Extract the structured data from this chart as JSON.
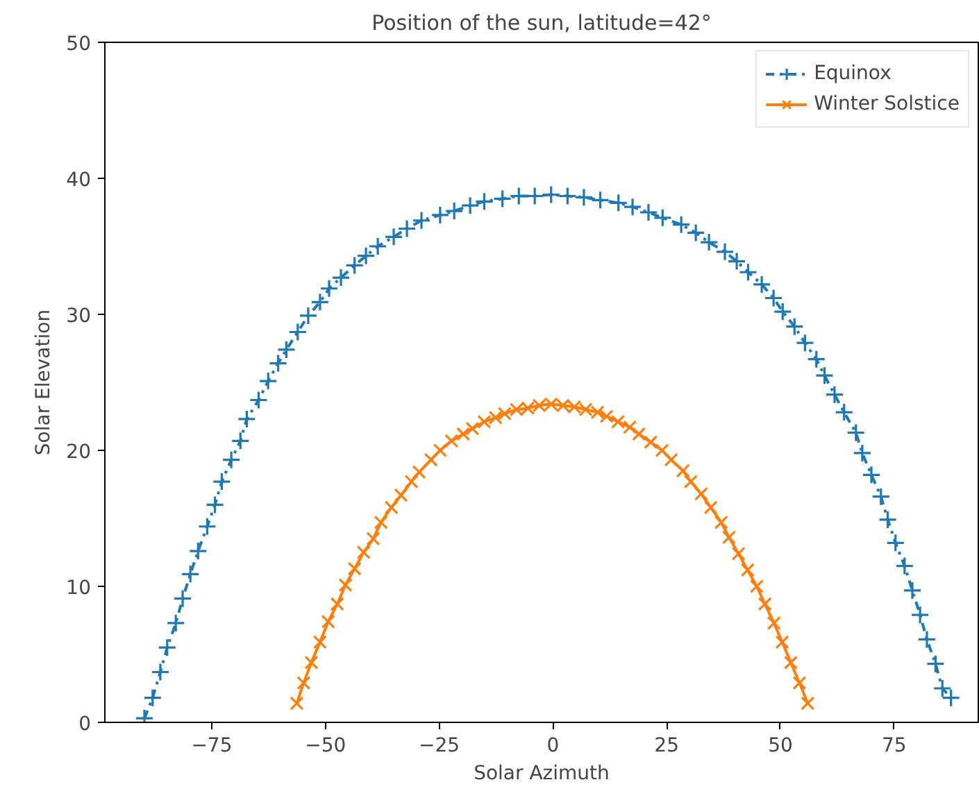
{
  "chart_data": {
    "type": "line",
    "title": "Position of the sun, latitude=42°",
    "xlabel": "Solar Azimuth",
    "ylabel": "Solar Elevation",
    "xlim": [
      -98.5,
      93.5
    ],
    "ylim": [
      0,
      50
    ],
    "xticks": [
      {
        "value": -75,
        "label": "−75"
      },
      {
        "value": -50,
        "label": "−50"
      },
      {
        "value": -25,
        "label": "−25"
      },
      0,
      25,
      50,
      75
    ],
    "yticks": [
      0,
      10,
      20,
      30,
      40,
      50
    ],
    "grid": false,
    "legend": "top right",
    "series": [
      {
        "name": "Equinox",
        "color": "#1f77b4",
        "marker": "cross",
        "line_style": "dashdot",
        "x": [
          -89.8,
          -88.0,
          -86.3,
          -84.8,
          -82.9,
          -81.4,
          -79.7,
          -78.0,
          -76.0,
          -74.3,
          -72.8,
          -70.7,
          -68.7,
          -67.3,
          -64.7,
          -62.6,
          -60.4,
          -58.6,
          -56.1,
          -53.8,
          -51.2,
          -49.2,
          -46.6,
          -43.6,
          -41.1,
          -38.5,
          -35.0,
          -32.1,
          -28.9,
          -24.8,
          -21.7,
          -18.2,
          -15.1,
          -11.1,
          -7.5,
          -4.0,
          -0.4,
          3.2,
          6.8,
          10.4,
          14.4,
          17.5,
          21.0,
          24.1,
          28.2,
          31.4,
          34.3,
          37.8,
          40.4,
          42.9,
          45.9,
          48.5,
          50.5,
          53.1,
          55.4,
          57.9,
          59.7,
          61.9,
          64.0,
          66.6,
          68.0,
          70.0,
          72.1,
          73.6,
          75.3,
          77.3,
          79.0,
          80.7,
          82.2,
          84.1,
          85.6,
          87.5
        ],
        "values": [
          0.3,
          1.8,
          3.7,
          5.5,
          7.3,
          9.1,
          10.9,
          12.6,
          14.4,
          16.0,
          17.7,
          19.3,
          20.7,
          22.3,
          23.7,
          25.1,
          26.4,
          27.4,
          28.7,
          29.9,
          30.9,
          31.9,
          32.7,
          33.6,
          34.3,
          35.0,
          35.7,
          36.3,
          36.9,
          37.3,
          37.6,
          38.0,
          38.3,
          38.5,
          38.7,
          38.7,
          38.8,
          38.7,
          38.6,
          38.4,
          38.2,
          37.9,
          37.5,
          37.1,
          36.6,
          36.0,
          35.3,
          34.6,
          33.9,
          33.1,
          32.2,
          31.2,
          30.2,
          29.1,
          27.9,
          26.7,
          25.5,
          24.1,
          22.8,
          21.3,
          19.8,
          18.2,
          16.6,
          14.9,
          13.2,
          11.5,
          9.7,
          7.9,
          6.1,
          4.3,
          2.5,
          1.8
        ]
      },
      {
        "name": "Winter Solstice",
        "color": "#ff7f0e",
        "marker": "x",
        "line_style": "solid",
        "x": [
          -56.3,
          -54.8,
          -53.1,
          -51.2,
          -49.4,
          -47.4,
          -45.6,
          -43.6,
          -41.6,
          -39.5,
          -37.8,
          -35.5,
          -33.4,
          -31.1,
          -29.4,
          -26.8,
          -24.8,
          -22.3,
          -19.7,
          -17.7,
          -15.1,
          -12.6,
          -10.6,
          -8.0,
          -5.5,
          -3.0,
          -0.4,
          2.2,
          4.7,
          7.2,
          9.8,
          11.8,
          14.3,
          16.9,
          18.9,
          21.5,
          24.0,
          26.0,
          28.6,
          30.3,
          32.6,
          34.7,
          37.0,
          38.7,
          40.8,
          42.8,
          44.8,
          46.6,
          48.6,
          50.4,
          52.3,
          54.2,
          56.0
        ],
        "values": [
          1.4,
          2.9,
          4.4,
          5.9,
          7.4,
          8.7,
          10.1,
          11.3,
          12.5,
          13.5,
          14.7,
          15.8,
          16.7,
          17.7,
          18.4,
          19.3,
          20.0,
          20.7,
          21.2,
          21.6,
          22.1,
          22.4,
          22.7,
          23.0,
          23.1,
          23.3,
          23.4,
          23.3,
          23.2,
          23.0,
          22.8,
          22.5,
          22.1,
          21.7,
          21.2,
          20.6,
          20.0,
          19.3,
          18.5,
          17.7,
          16.8,
          15.8,
          14.7,
          13.6,
          12.4,
          11.2,
          10.0,
          8.7,
          7.3,
          5.9,
          4.4,
          2.9,
          1.4
        ]
      }
    ]
  }
}
